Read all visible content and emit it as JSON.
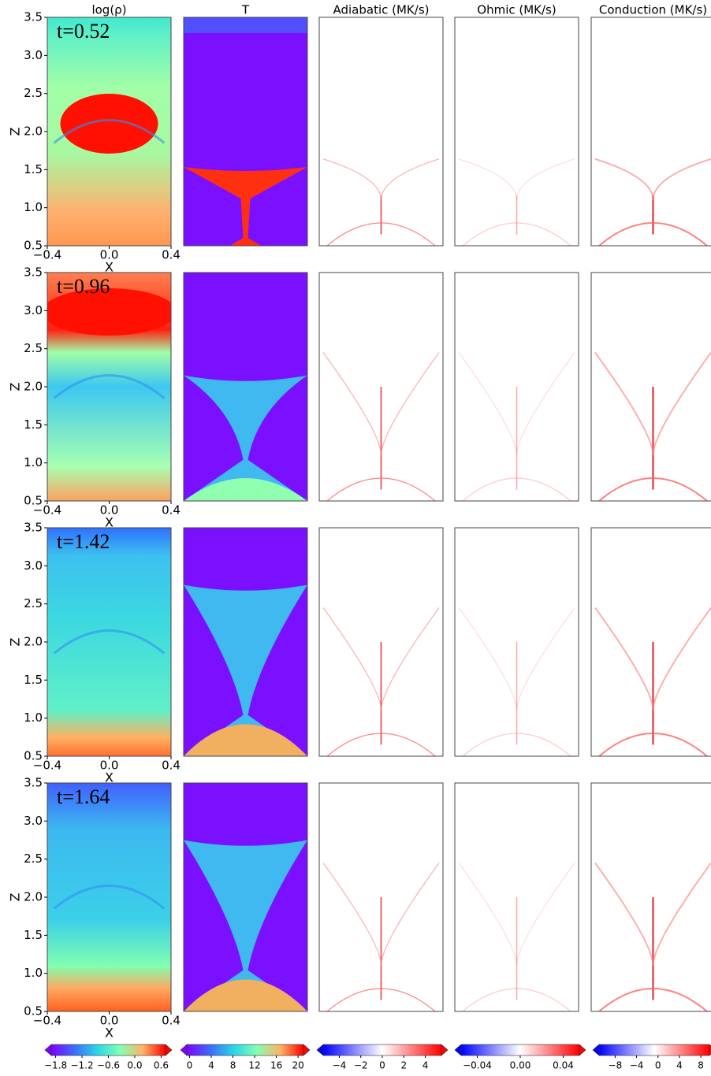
{
  "figure": {
    "columns": [
      {
        "title": "log(ρ)"
      },
      {
        "title": "T"
      },
      {
        "title": "Adiabatic (MK/s)"
      },
      {
        "title": "Ohmic (MK/s)"
      },
      {
        "title": "Conduction (MK/s)"
      }
    ],
    "rows": [
      {
        "time": "t=0.52"
      },
      {
        "time": "t=0.96"
      },
      {
        "time": "t=1.42"
      },
      {
        "time": "t=1.64"
      }
    ],
    "axes": {
      "xlabel": "X",
      "ylabel": "Z",
      "xlim": [
        -0.4,
        0.4
      ],
      "xticks": [
        {
          "value": -0.4,
          "label": "−0.4"
        },
        {
          "value": 0,
          "label": "0.0"
        },
        0.4
      ],
      "ylim": [
        0.5,
        3.5
      ],
      "yticks": [
        0.5,
        {
          "value": 1,
          "label": "1.0"
        },
        1.5,
        {
          "value": 2,
          "label": "2.0"
        },
        2.5,
        {
          "value": 3,
          "label": "3.0"
        },
        3.5
      ]
    },
    "colorbars": [
      {
        "colormap": "rainbow",
        "lim": [
          -1.9,
          0.7
        ],
        "ticks": [
          {
            "value": -1.8,
            "label": "−1.8"
          },
          {
            "value": -1.2,
            "label": "−1.2"
          },
          {
            "value": -0.6,
            "label": "−0.6"
          },
          {
            "value": 0,
            "label": "0.0"
          },
          0.6
        ]
      },
      {
        "colormap": "rainbow",
        "lim": [
          -0.5,
          21
        ],
        "ticks": [
          0,
          4,
          8,
          12,
          16,
          20
        ]
      },
      {
        "colormap": "bwr",
        "lim": [
          -5.5,
          5.5
        ],
        "ticks": [
          {
            "value": -4,
            "label": "−4"
          },
          {
            "value": -2,
            "label": "−2"
          },
          0,
          2,
          4
        ]
      },
      {
        "colormap": "bwr",
        "lim": [
          -0.055,
          0.055
        ],
        "ticks": [
          {
            "value": -0.04,
            "label": "−0.04"
          },
          {
            "value": 0,
            "label": "0.00"
          },
          0.04
        ]
      },
      {
        "colormap": "bwr",
        "lim": [
          -11,
          9.6
        ],
        "ticks": [
          {
            "value": -8,
            "label": "−8"
          },
          {
            "value": -4,
            "label": "−4"
          },
          0,
          4,
          8
        ]
      }
    ]
  }
}
